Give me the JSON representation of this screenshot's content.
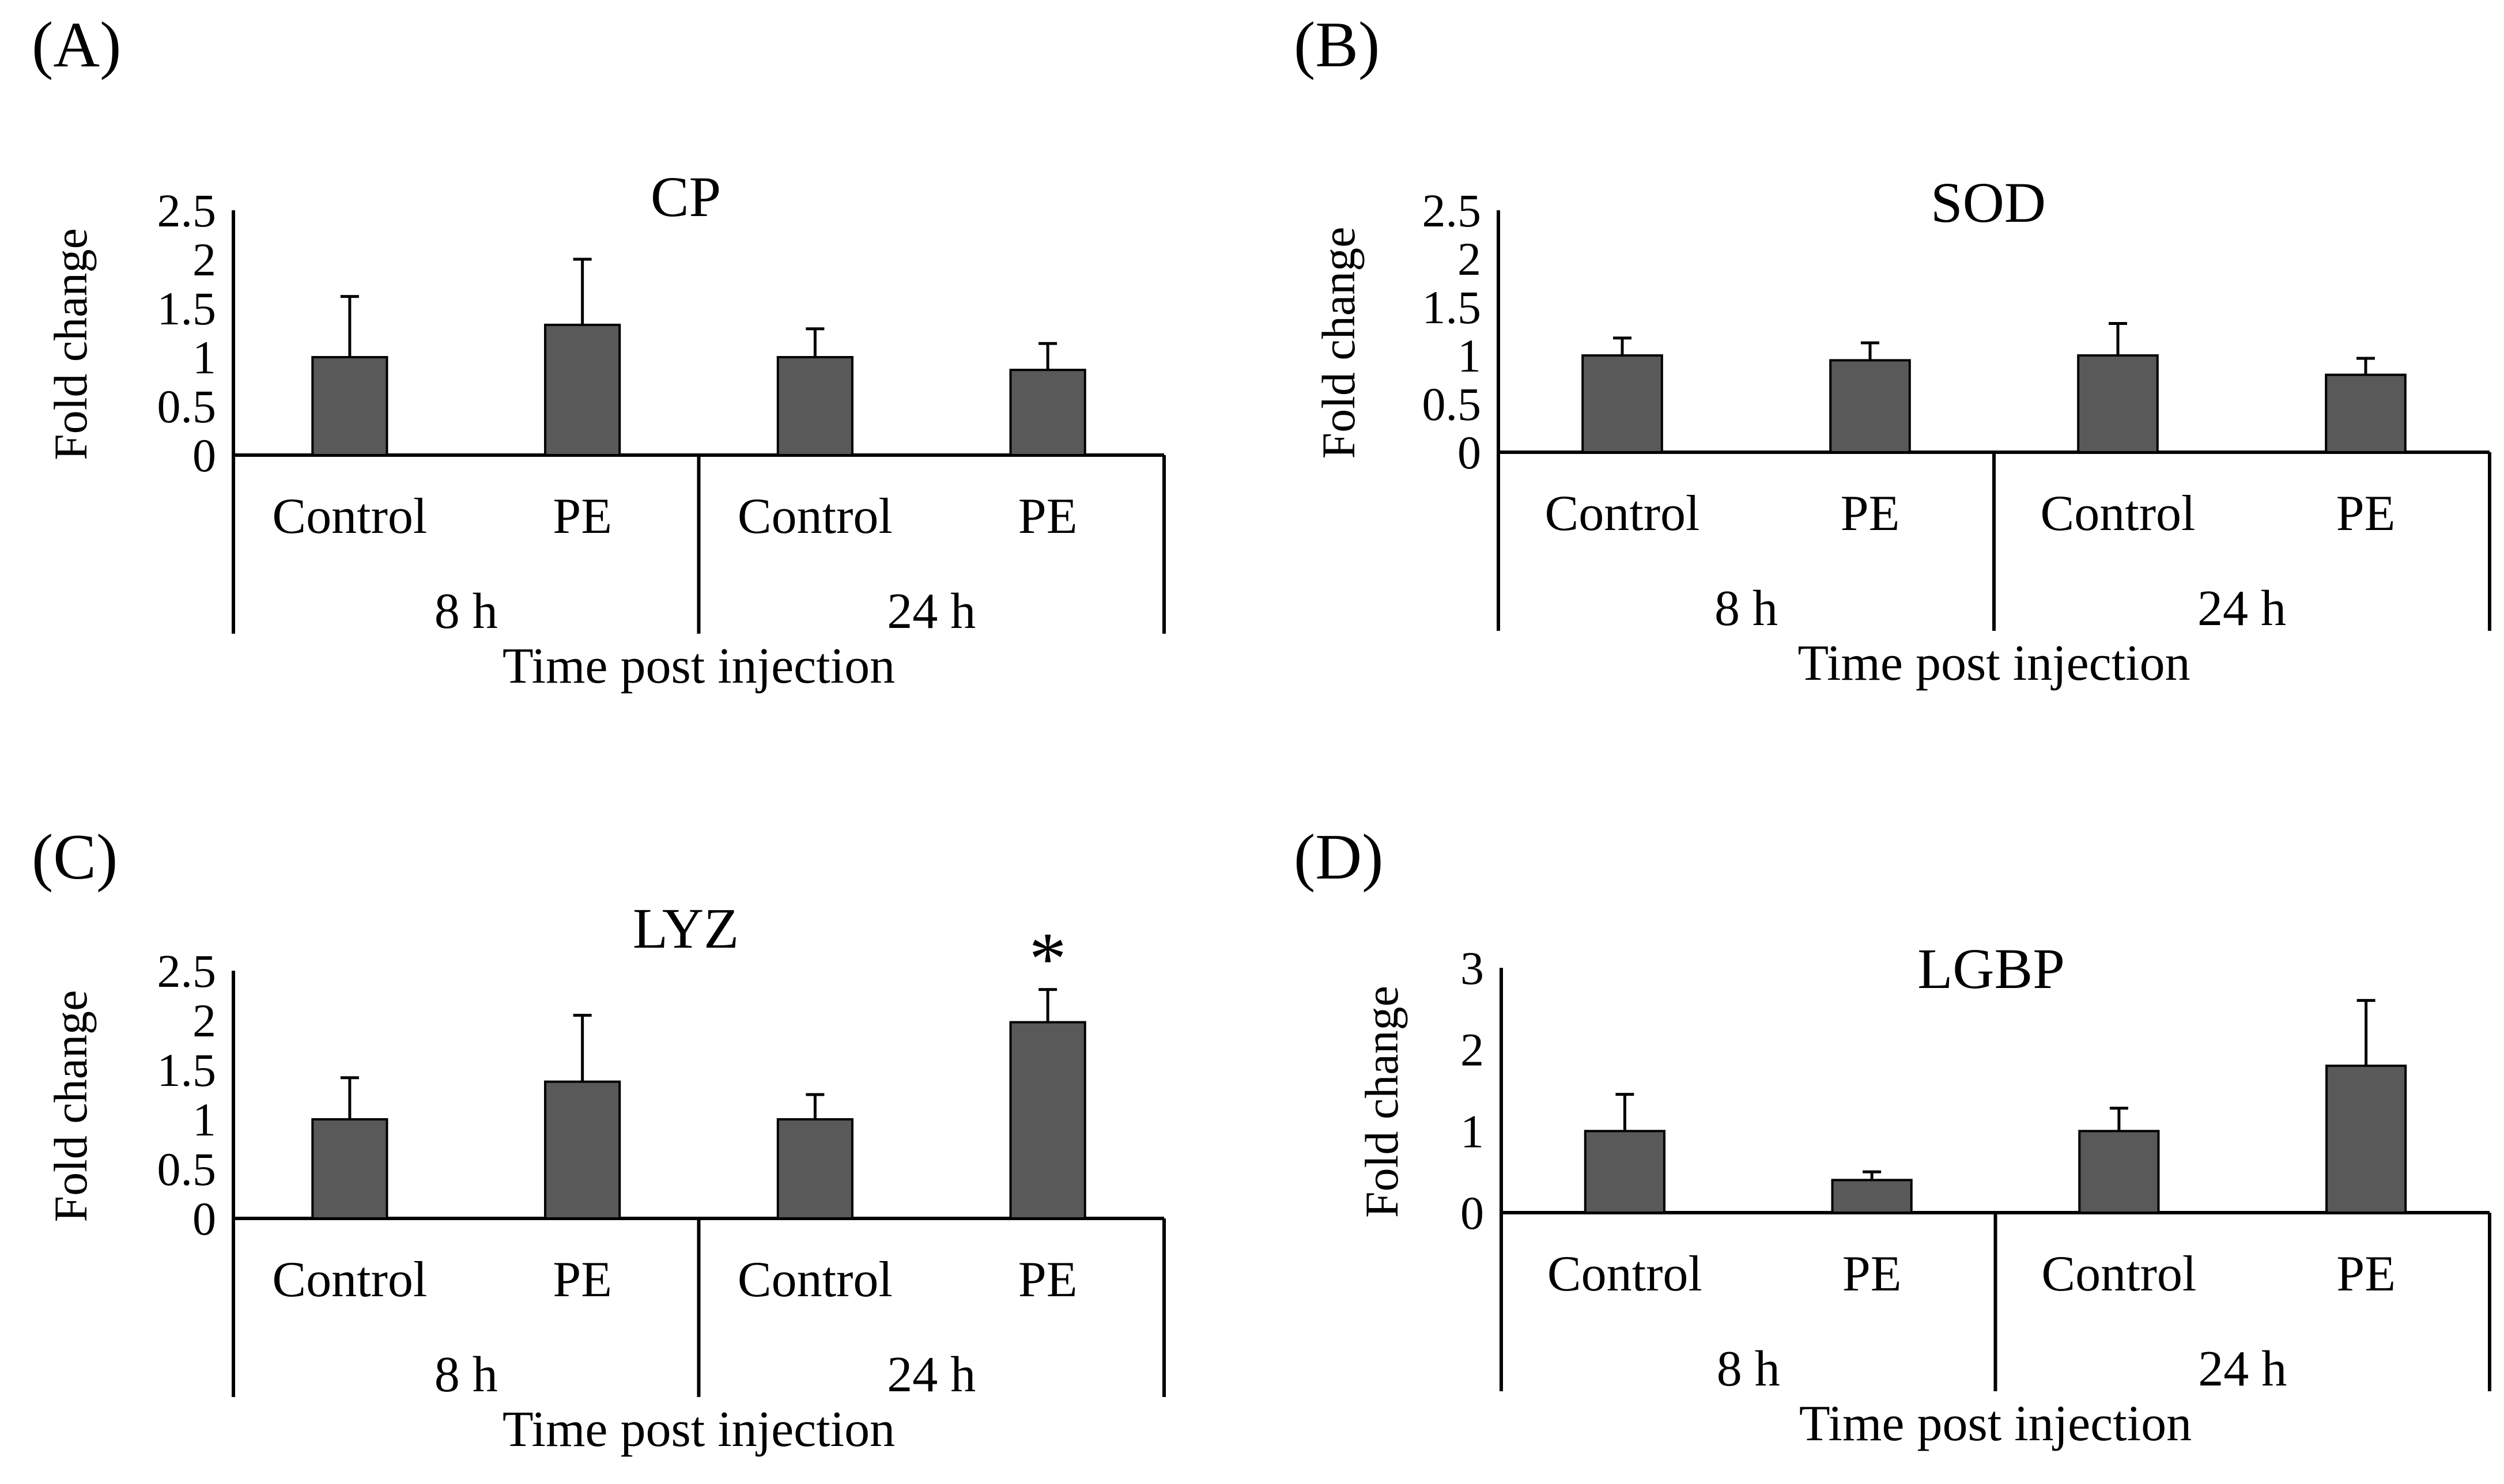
{
  "chart_data": [
    {
      "type": "bar",
      "panel": "(A)",
      "title": "CP",
      "ylabel": "Fold change",
      "xlabel": "Time post injection",
      "ylim": [
        0,
        2.5
      ],
      "yticks": [
        "0",
        "0.5",
        "1",
        "1.5",
        "2",
        "2.5"
      ],
      "groups": [
        "8 h",
        "24 h"
      ],
      "categories": [
        "Control",
        "PE",
        "Control",
        "PE"
      ],
      "values": [
        1.0,
        1.33,
        1.0,
        0.87
      ],
      "errors": [
        0.62,
        0.67,
        0.29,
        0.27
      ],
      "markers": [
        "",
        "",
        "",
        ""
      ],
      "bar_color": "#595959"
    },
    {
      "type": "bar",
      "panel": "(B)",
      "title": "SOD",
      "ylabel": "Fold change",
      "xlabel": "Time post injection",
      "ylim": [
        0,
        2.5
      ],
      "yticks": [
        "0",
        "0.5",
        "1",
        "1.5",
        "2",
        "2.5"
      ],
      "groups": [
        "8 h",
        "24 h"
      ],
      "categories": [
        "Control",
        "PE",
        "Control",
        "PE"
      ],
      "values": [
        1.0,
        0.95,
        1.0,
        0.8
      ],
      "errors": [
        0.18,
        0.18,
        0.33,
        0.17
      ],
      "markers": [
        "",
        "",
        "",
        ""
      ],
      "bar_color": "#595959"
    },
    {
      "type": "bar",
      "panel": "(C)",
      "title": "LYZ",
      "ylabel": "Fold change",
      "xlabel": "Time post injection",
      "ylim": [
        0,
        2.5
      ],
      "yticks": [
        "0",
        "0.5",
        "1",
        "1.5",
        "2",
        "2.5"
      ],
      "groups": [
        "8 h",
        "24 h"
      ],
      "categories": [
        "Control",
        "PE",
        "Control",
        "PE"
      ],
      "values": [
        1.0,
        1.38,
        1.0,
        1.98
      ],
      "errors": [
        0.42,
        0.67,
        0.25,
        0.33
      ],
      "markers": [
        "",
        "",
        "",
        "*"
      ],
      "bar_color": "#595959"
    },
    {
      "type": "bar",
      "panel": "(D)",
      "title": "LGBP",
      "ylabel": "Fold change",
      "xlabel": "Time post injection",
      "ylim": [
        0,
        3
      ],
      "yticks": [
        "0",
        "1",
        "2",
        "3"
      ],
      "groups": [
        "8 h",
        "24 h"
      ],
      "categories": [
        "Control",
        "PE",
        "Control",
        "PE"
      ],
      "values": [
        1.0,
        0.4,
        1.0,
        1.8
      ],
      "errors": [
        0.45,
        0.1,
        0.28,
        0.8
      ],
      "markers": [
        "",
        "",
        "",
        ""
      ],
      "bar_color": "#595959"
    }
  ]
}
